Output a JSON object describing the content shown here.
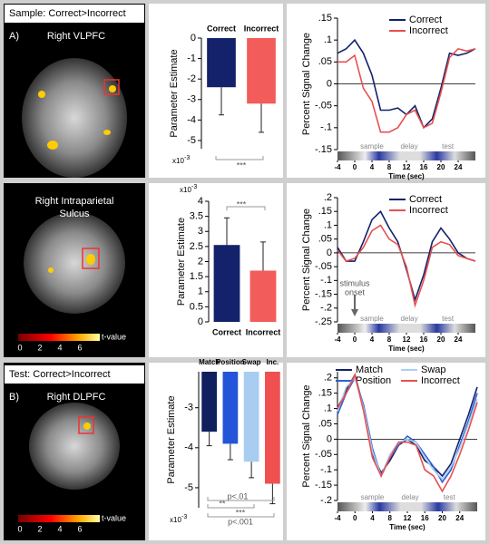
{
  "brain_panels": [
    {
      "heading": "Sample: Correct>Incorrect",
      "letter": "A)",
      "region": [
        "Right VLPFC"
      ]
    },
    {
      "region": [
        "Right Intraparietal",
        "Sulcus"
      ],
      "colorbar_ticks": [
        0,
        2,
        4,
        6
      ],
      "colorbar_label": "t-value"
    },
    {
      "heading": "Test: Correct>Incorrect",
      "letter": "B)",
      "region": [
        "Right DLPFC"
      ],
      "colorbar_ticks": [
        0,
        2,
        4,
        6
      ],
      "colorbar_label": "t-value"
    }
  ],
  "chart_data": [
    {
      "type": "bar",
      "ylabel": "Parameter Estimate",
      "categories": [
        "Correct",
        "Incorrect"
      ],
      "category_position": "top",
      "values": [
        -2.4,
        -3.2
      ],
      "errors": [
        1.35,
        1.4
      ],
      "colors": [
        "#13226a",
        "#f25c5a"
      ],
      "ylim": [
        -5.4,
        0
      ],
      "yticks": [
        0,
        -1,
        -2,
        -3,
        -4,
        -5
      ],
      "scale_label": "x10",
      "scale_exponent": "-3",
      "annotations": [
        "***"
      ]
    },
    {
      "type": "line",
      "xlabel": "Time (sec)",
      "ylabel": "Percent Signal Change",
      "x": [
        -4,
        -2,
        0,
        2,
        4,
        6,
        8,
        10,
        12,
        14,
        16,
        18,
        20,
        22,
        24,
        26,
        28
      ],
      "series": [
        {
          "name": "Correct",
          "color": "#13226a",
          "values": [
            0.07,
            0.08,
            0.1,
            0.07,
            0.02,
            -0.06,
            -0.06,
            -0.055,
            -0.07,
            -0.05,
            -0.1,
            -0.08,
            -0.01,
            0.07,
            0.065,
            0.07,
            0.08
          ]
        },
        {
          "name": "Incorrect",
          "color": "#e8504f",
          "values": [
            0.05,
            0.05,
            0.065,
            -0.01,
            -0.04,
            -0.11,
            -0.11,
            -0.1,
            -0.07,
            -0.06,
            -0.1,
            -0.09,
            -0.02,
            0.06,
            0.08,
            0.075,
            0.08
          ]
        }
      ],
      "xlim": [
        -4,
        28
      ],
      "xticks": [
        -4,
        0,
        4,
        8,
        12,
        16,
        20,
        24
      ],
      "ylim": [
        -0.15,
        0.15
      ],
      "yticks": [
        {
          "value": -0.15,
          "label": "-.15"
        },
        {
          "value": -0.1,
          "label": "-.1"
        },
        {
          "value": -0.05,
          "label": "-.05"
        },
        0,
        {
          "value": 0.05,
          "label": ".05"
        },
        {
          "value": 0.1,
          "label": ".1"
        },
        {
          "value": 0.15,
          "label": ".15"
        }
      ],
      "phases": [
        "sample",
        "delay",
        "test"
      ]
    },
    {
      "type": "bar",
      "ylabel": "Parameter Estimate",
      "categories": [
        "Correct",
        "Incorrect"
      ],
      "category_position": "bottom",
      "values": [
        2.55,
        1.7
      ],
      "errors": [
        0.9,
        0.95
      ],
      "colors": [
        "#13226a",
        "#f25c5a"
      ],
      "ylim": [
        0,
        4
      ],
      "yticks": [
        0,
        0.5,
        1,
        1.5,
        2,
        2.5,
        3,
        3.5,
        4
      ],
      "scale_label": "x10",
      "scale_exponent": "-3",
      "annotations": [
        "***"
      ]
    },
    {
      "type": "line",
      "xlabel": "Time (sec)",
      "ylabel": "Percent Signal Change",
      "x": [
        -4,
        -2,
        0,
        2,
        4,
        6,
        8,
        10,
        12,
        14,
        16,
        18,
        20,
        22,
        24,
        26,
        28
      ],
      "series": [
        {
          "name": "Correct",
          "color": "#13226a",
          "values": [
            0.02,
            -0.03,
            -0.03,
            0.04,
            0.12,
            0.15,
            0.09,
            0.04,
            -0.06,
            -0.17,
            -0.08,
            0.04,
            0.09,
            0.05,
            0.0,
            -0.02,
            -0.03
          ]
        },
        {
          "name": "Incorrect",
          "color": "#e8504f",
          "values": [
            0.01,
            -0.03,
            -0.02,
            0.02,
            0.08,
            0.1,
            0.05,
            0.03,
            -0.05,
            -0.19,
            -0.1,
            0.02,
            0.04,
            0.03,
            -0.01,
            -0.02,
            -0.03
          ]
        }
      ],
      "xlim": [
        -4,
        28
      ],
      "xticks": [
        -4,
        0,
        4,
        8,
        12,
        16,
        20,
        24
      ],
      "ylim": [
        -0.25,
        0.2
      ],
      "yticks": [
        {
          "value": -0.25,
          "label": "-.25"
        },
        {
          "value": -0.2,
          "label": "-.2"
        },
        {
          "value": -0.15,
          "label": "-.15"
        },
        {
          "value": -0.1,
          "label": "-.1"
        },
        {
          "value": -0.05,
          "label": "-.05"
        },
        0,
        {
          "value": 0.05,
          "label": ".05"
        },
        {
          "value": 0.1,
          "label": ".1"
        },
        {
          "value": 0.15,
          "label": ".15"
        },
        {
          "value": 0.2,
          "label": ".2"
        }
      ],
      "phases": [
        "sample",
        "delay",
        "test"
      ],
      "annotation": [
        "stimulus",
        "onset"
      ]
    },
    {
      "type": "bar",
      "ylabel": "Parameter Estimate",
      "categories": [
        "Match",
        "Position",
        "Swap",
        "Inc."
      ],
      "category_position": "top",
      "values": [
        -3.6,
        -3.9,
        -4.35,
        -4.9
      ],
      "errors": [
        0.35,
        0.4,
        0.4,
        0.5
      ],
      "colors": [
        "#10205e",
        "#2454d8",
        "#a8cdf0",
        "#f05050"
      ],
      "ylim": [
        -5.5,
        -2.1
      ],
      "yticks": [
        -3,
        -4,
        -5
      ],
      "scale_label": "x10",
      "scale_exponent": "-3",
      "annotations": [
        "p<.01",
        "**",
        "***",
        "p<.001"
      ]
    },
    {
      "type": "line",
      "xlabel": "Time (sec)",
      "ylabel": "Percent Signal Change",
      "x": [
        -4,
        -2,
        0,
        2,
        4,
        6,
        8,
        10,
        12,
        14,
        16,
        18,
        20,
        22,
        24,
        26,
        28
      ],
      "series": [
        {
          "name": "Match",
          "color": "#13226a",
          "values": [
            0.1,
            0.16,
            0.21,
            0.1,
            -0.05,
            -0.11,
            -0.07,
            -0.02,
            0.0,
            -0.02,
            -0.07,
            -0.09,
            -0.12,
            -0.08,
            0.0,
            0.08,
            0.17
          ]
        },
        {
          "name": "Position",
          "color": "#3060d0",
          "values": [
            0.08,
            0.15,
            0.2,
            0.11,
            -0.03,
            -0.12,
            -0.06,
            -0.02,
            0.01,
            -0.01,
            -0.05,
            -0.09,
            -0.14,
            -0.1,
            -0.02,
            0.06,
            0.15
          ]
        },
        {
          "name": "Swap",
          "color": "#a8d0f0",
          "values": [
            0.09,
            0.17,
            0.2,
            0.1,
            -0.04,
            -0.12,
            -0.05,
            -0.01,
            0.0,
            -0.01,
            -0.06,
            -0.1,
            -0.13,
            -0.09,
            -0.03,
            0.05,
            0.13
          ]
        },
        {
          "name": "Incorrect",
          "color": "#e85050",
          "values": [
            0.1,
            0.15,
            0.21,
            0.09,
            -0.06,
            -0.12,
            -0.06,
            -0.01,
            -0.01,
            -0.02,
            -0.1,
            -0.12,
            -0.17,
            -0.12,
            -0.05,
            0.03,
            0.12
          ]
        }
      ],
      "xlim": [
        -4,
        28
      ],
      "xticks": [
        -4,
        0,
        4,
        8,
        12,
        16,
        20,
        24
      ],
      "ylim": [
        -0.2,
        0.22
      ],
      "yticks": [
        {
          "value": -0.2,
          "label": "-.2"
        },
        {
          "value": -0.15,
          "label": "-.15"
        },
        {
          "value": -0.1,
          "label": "-.1"
        },
        {
          "value": -0.05,
          "label": "-.05"
        },
        0,
        {
          "value": 0.05,
          "label": ".05"
        },
        {
          "value": 0.1,
          "label": ".1"
        },
        {
          "value": 0.15,
          "label": ".15"
        },
        {
          "value": 0.2,
          "label": ".2"
        }
      ],
      "phases": [
        "sample",
        "delay",
        "test"
      ]
    }
  ]
}
